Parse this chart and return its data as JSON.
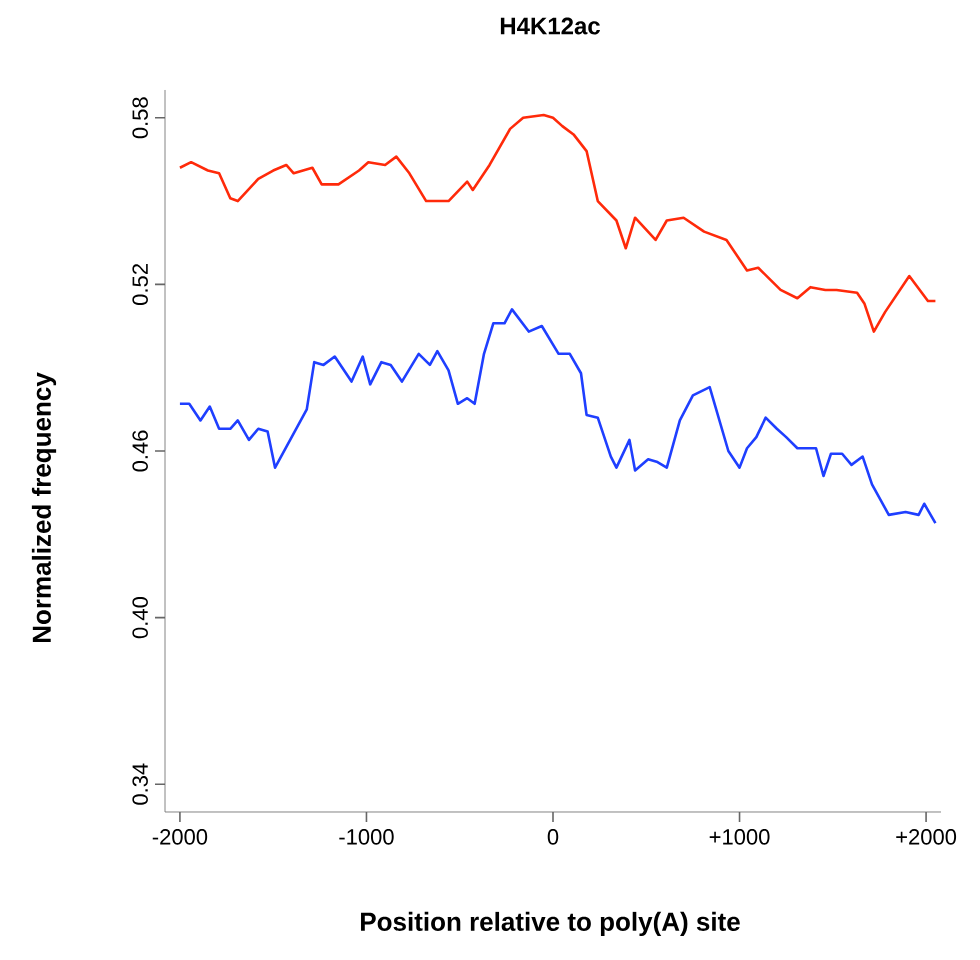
{
  "chart_data": {
    "type": "line",
    "title": "H4K12ac",
    "xlabel": "Position relative to poly(A) site",
    "ylabel": "Normalized frequency",
    "xlim": [
      -2080,
      2080
    ],
    "ylim": [
      0.33,
      0.59
    ],
    "xticks": [
      -2000,
      -1000,
      0,
      {
        "value": 1000,
        "label": "+1000"
      },
      {
        "value": 2000,
        "label": "+2000"
      }
    ],
    "yticks": [
      {
        "value": 0.34,
        "label": "0.34"
      },
      {
        "value": 0.4,
        "label": "0.40"
      },
      {
        "value": 0.46,
        "label": "0.46"
      },
      {
        "value": 0.52,
        "label": "0.52"
      },
      {
        "value": 0.58,
        "label": "0.58"
      }
    ],
    "grid": false,
    "marker": "none",
    "line_style": "solid",
    "series": [
      {
        "color": "#ff2a0a",
        "x": [
          -2000,
          -1940,
          -1850,
          -1790,
          -1730,
          -1690,
          -1580,
          -1500,
          -1430,
          -1390,
          -1290,
          -1240,
          -1150,
          -1040,
          -990,
          -900,
          -840,
          -770,
          -680,
          -560,
          -460,
          -430,
          -340,
          -230,
          -160,
          -50,
          0,
          50,
          110,
          180,
          240,
          340,
          390,
          440,
          550,
          610,
          700,
          810,
          930,
          1040,
          1100,
          1220,
          1310,
          1380,
          1460,
          1520,
          1630,
          1670,
          1720,
          1780,
          1910,
          2010,
          2050
        ],
        "values": [
          0.562,
          0.564,
          0.561,
          0.56,
          0.551,
          0.55,
          0.558,
          0.561,
          0.563,
          0.56,
          0.562,
          0.556,
          0.556,
          0.561,
          0.564,
          0.563,
          0.566,
          0.56,
          0.55,
          0.55,
          0.557,
          0.554,
          0.563,
          0.576,
          0.58,
          0.581,
          0.58,
          0.577,
          0.574,
          0.568,
          0.55,
          0.543,
          0.533,
          0.544,
          0.536,
          0.543,
          0.544,
          0.539,
          0.536,
          0.525,
          0.526,
          0.518,
          0.515,
          0.519,
          0.518,
          0.518,
          0.517,
          0.513,
          0.503,
          0.51,
          0.523,
          0.514,
          0.514
        ]
      },
      {
        "color": "#1f3fff",
        "x": [
          -2000,
          -1950,
          -1890,
          -1840,
          -1790,
          -1730,
          -1690,
          -1630,
          -1580,
          -1530,
          -1490,
          -1320,
          -1280,
          -1230,
          -1170,
          -1080,
          -1020,
          -980,
          -920,
          -870,
          -810,
          -720,
          -660,
          -620,
          -560,
          -510,
          -460,
          -420,
          -370,
          -320,
          -260,
          -220,
          -130,
          -60,
          30,
          90,
          150,
          180,
          240,
          310,
          340,
          410,
          440,
          510,
          560,
          610,
          680,
          750,
          840,
          940,
          1000,
          1040,
          1090,
          1140,
          1200,
          1250,
          1310,
          1410,
          1450,
          1490,
          1550,
          1600,
          1660,
          1710,
          1800,
          1890,
          1960,
          1990,
          2050
        ],
        "values": [
          0.477,
          0.477,
          0.471,
          0.476,
          0.468,
          0.468,
          0.471,
          0.464,
          0.468,
          0.467,
          0.454,
          0.475,
          0.492,
          0.491,
          0.494,
          0.485,
          0.494,
          0.484,
          0.492,
          0.491,
          0.485,
          0.495,
          0.491,
          0.496,
          0.489,
          0.477,
          0.479,
          0.477,
          0.495,
          0.506,
          0.506,
          0.511,
          0.503,
          0.505,
          0.495,
          0.495,
          0.488,
          0.473,
          0.472,
          0.458,
          0.454,
          0.464,
          0.453,
          0.457,
          0.456,
          0.454,
          0.471,
          0.48,
          0.483,
          0.46,
          0.454,
          0.461,
          0.465,
          0.472,
          0.468,
          0.465,
          0.461,
          0.461,
          0.451,
          0.459,
          0.459,
          0.455,
          0.458,
          0.448,
          0.437,
          0.438,
          0.437,
          0.441,
          0.434
        ]
      }
    ]
  }
}
